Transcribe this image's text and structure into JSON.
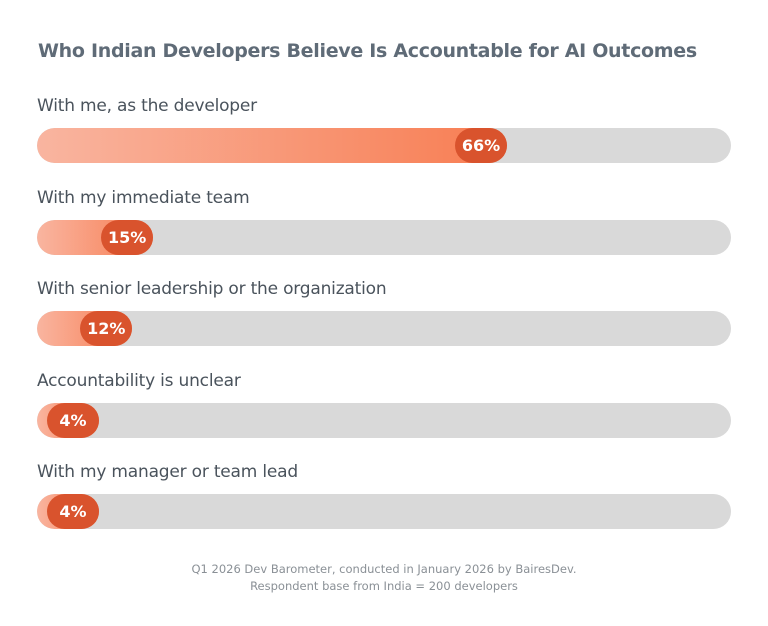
{
  "chart_data": {
    "type": "bar",
    "orientation": "horizontal",
    "title": "Who Indian Developers Believe Is Accountable for AI Outcomes",
    "categories": [
      "With me, as the developer",
      "With my immediate team",
      "With senior leadership or the organization",
      "Accountability is unclear",
      "With my manager or team lead"
    ],
    "values": [
      66,
      15,
      12,
      4,
      4
    ],
    "data_labels": [
      "66%",
      "15%",
      "12%",
      "4%",
      "4%"
    ],
    "unit": "%",
    "xlim": [
      0,
      100
    ],
    "xlabel": "",
    "ylabel": "",
    "grid": false,
    "legend": "none",
    "colors": {
      "fill_start": "#f9b5a0",
      "fill_end": "#f87d52",
      "badge": "#d9532d",
      "track": "#d9d9d9",
      "title": "#5f6b77"
    }
  },
  "footnote": {
    "line1": "Q1 2026 Dev Barometer, conducted in January 2026 by BairesDev.",
    "line2": "Respondent base from India = 200 developers"
  }
}
